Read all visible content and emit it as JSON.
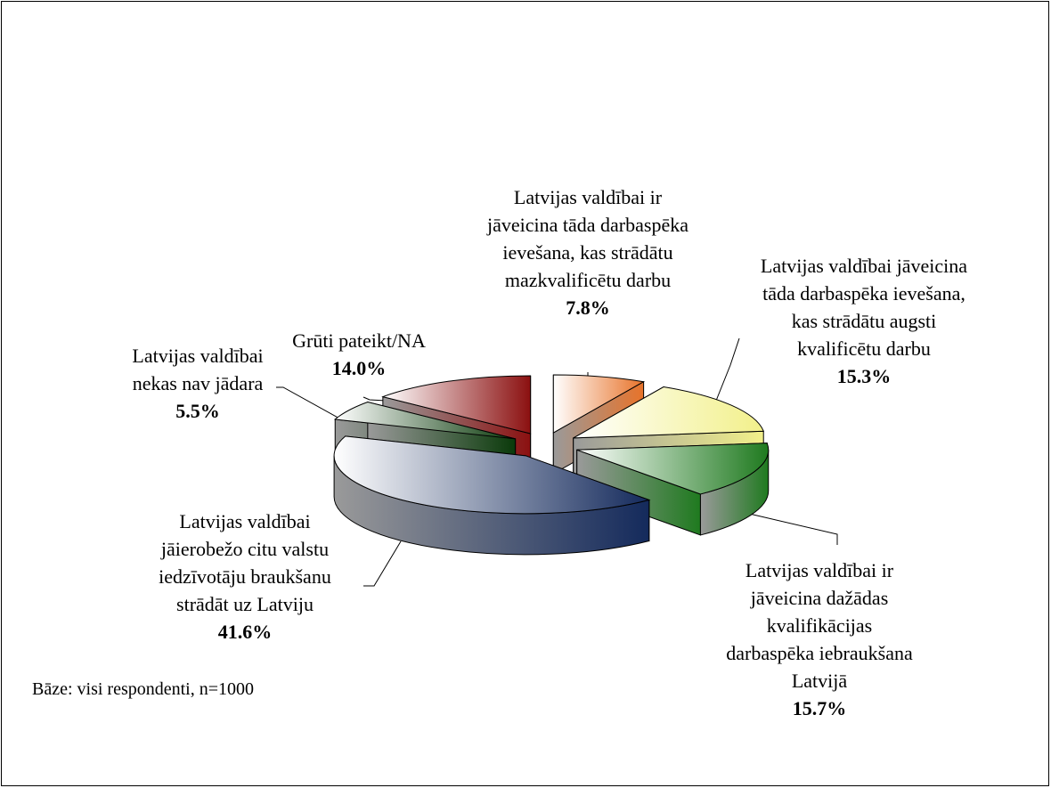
{
  "chart_data": {
    "type": "pie",
    "categories": [
      "Latvijas valdībai ir jāveicina tāda darbaspēka ievešana, kas strādātu mazkvalificētu darbu",
      "Latvijas valdībai jāveicina tāda darbaspēka ievešana, kas strādātu augsti kvalificētu darbu",
      "Latvijas valdībai ir jāveicina dažādas kvalifikācijas darbaspēka iebraukšana Latvijā",
      "Latvijas valdībai jāierobežo citu valstu iedzīvotāju braukšanu strādāt uz Latviju",
      "Latvijas valdībai nekas nav jādara",
      "Grūti pateikt/NA"
    ],
    "values": [
      7.8,
      15.3,
      15.7,
      41.6,
      5.5,
      14.0
    ],
    "value_labels": [
      "7.8%",
      "15.3%",
      "15.7%",
      "41.6%",
      "5.5%",
      "14.0%"
    ],
    "colors": [
      "#e8732a",
      "#f2f08a",
      "#1f7a1f",
      "#142a5c",
      "#0a3a0a",
      "#8b1010"
    ],
    "annotation": "Bāze: visi respondenti, n=1000"
  }
}
